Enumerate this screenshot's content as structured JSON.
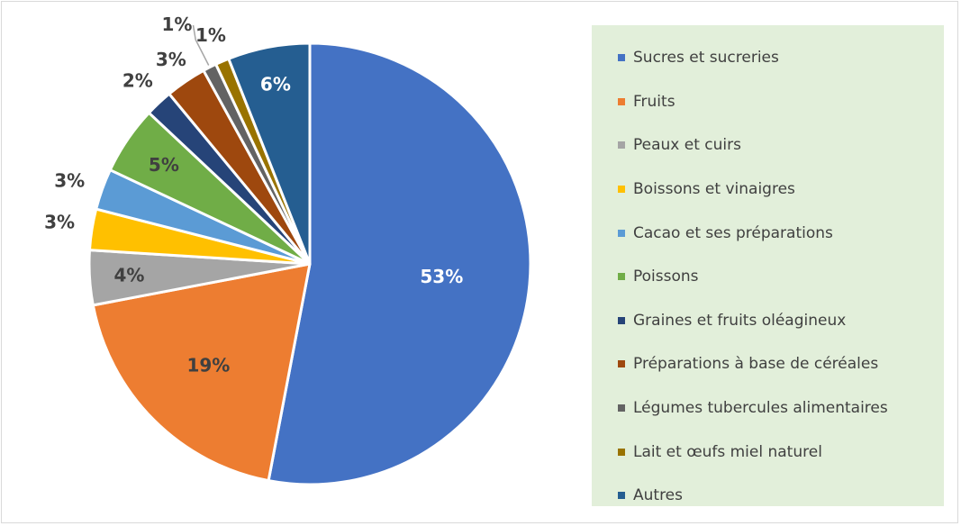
{
  "chart_data": {
    "type": "pie",
    "categories": [
      "Sucres et sucreries",
      "Fruits",
      "Peaux et cuirs",
      "Boissons et vinaigres",
      "Cacao et ses préparations",
      "Poissons",
      "Graines et fruits oléagineux",
      "Préparations à base de céréales",
      "Légumes tubercules alimentaires",
      "Lait et œufs  miel naturel",
      "Autres"
    ],
    "values": [
      53,
      19,
      4,
      3,
      3,
      5,
      2,
      3,
      1,
      1,
      6
    ],
    "labels": [
      "53%",
      "19%",
      "4%",
      "3%",
      "3%",
      "5%",
      "2%",
      "3%",
      "1%",
      "1%",
      "6%"
    ],
    "colors": [
      "#4472c4",
      "#ed7d31",
      "#a5a5a5",
      "#ffc000",
      "#5b9bd5",
      "#70ad47",
      "#264478",
      "#9e480e",
      "#636363",
      "#997300",
      "#255e91"
    ],
    "legend_position": "right",
    "legend_background": "#e2efda"
  }
}
